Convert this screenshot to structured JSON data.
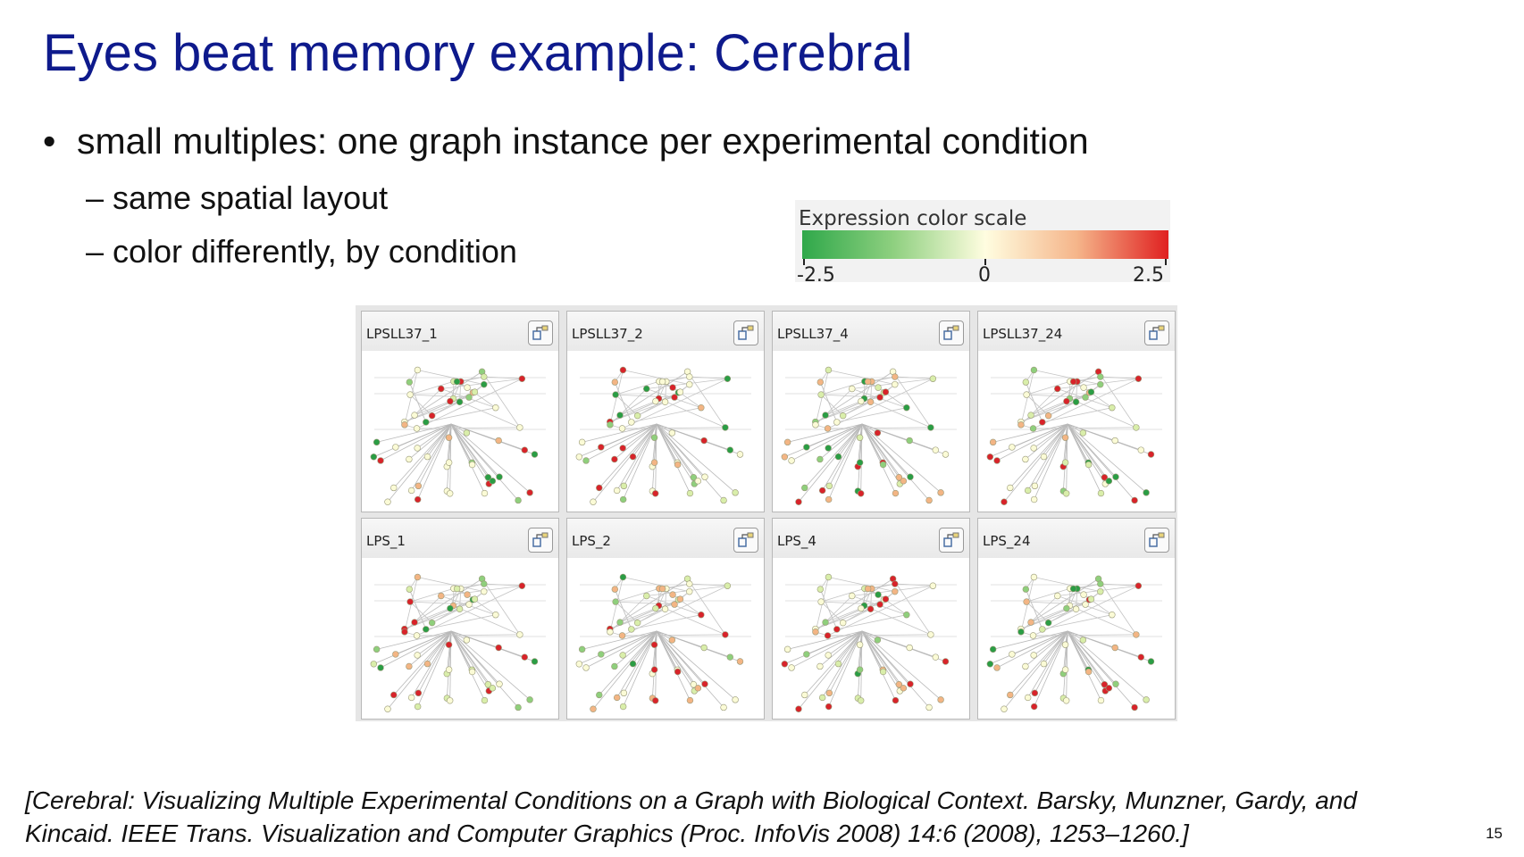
{
  "slide": {
    "title": "Eyes beat memory example: Cerebral",
    "bullet_main": "small multiples: one graph instance per experimental condition",
    "sub_bullets": [
      "same spatial layout",
      "color differently, by condition"
    ],
    "citation_line1": "[Cerebral: Visualizing Multiple Experimental Conditions on a Graph with Biological Context. Barsky, Munzner, Gardy, and",
    "citation_line2": "Kincaid. IEEE Trans. Visualization and Computer Graphics (Proc. InfoVis 2008) 14:6 (2008), 1253–1260.]",
    "page_number": "15"
  },
  "color_scale": {
    "title": "Expression color scale",
    "min_label": "-2.5",
    "mid_label": "0",
    "max_label": "2.5",
    "colors": [
      "#2fa84a",
      "#8fd080",
      "#fffde0",
      "#f5b58a",
      "#e02020"
    ]
  },
  "panels": [
    {
      "label": "LPSLL37_1",
      "icon": "layout-icon"
    },
    {
      "label": "LPSLL37_2",
      "icon": "layout-icon"
    },
    {
      "label": "LPSLL37_4",
      "icon": "layout-icon"
    },
    {
      "label": "LPSLL37_24",
      "icon": "layout-icon"
    },
    {
      "label": "LPS_1",
      "icon": "layout-icon"
    },
    {
      "label": "LPS_2",
      "icon": "layout-icon"
    },
    {
      "label": "LPS_4",
      "icon": "layout-icon"
    },
    {
      "label": "LPS_24",
      "icon": "layout-icon"
    }
  ]
}
